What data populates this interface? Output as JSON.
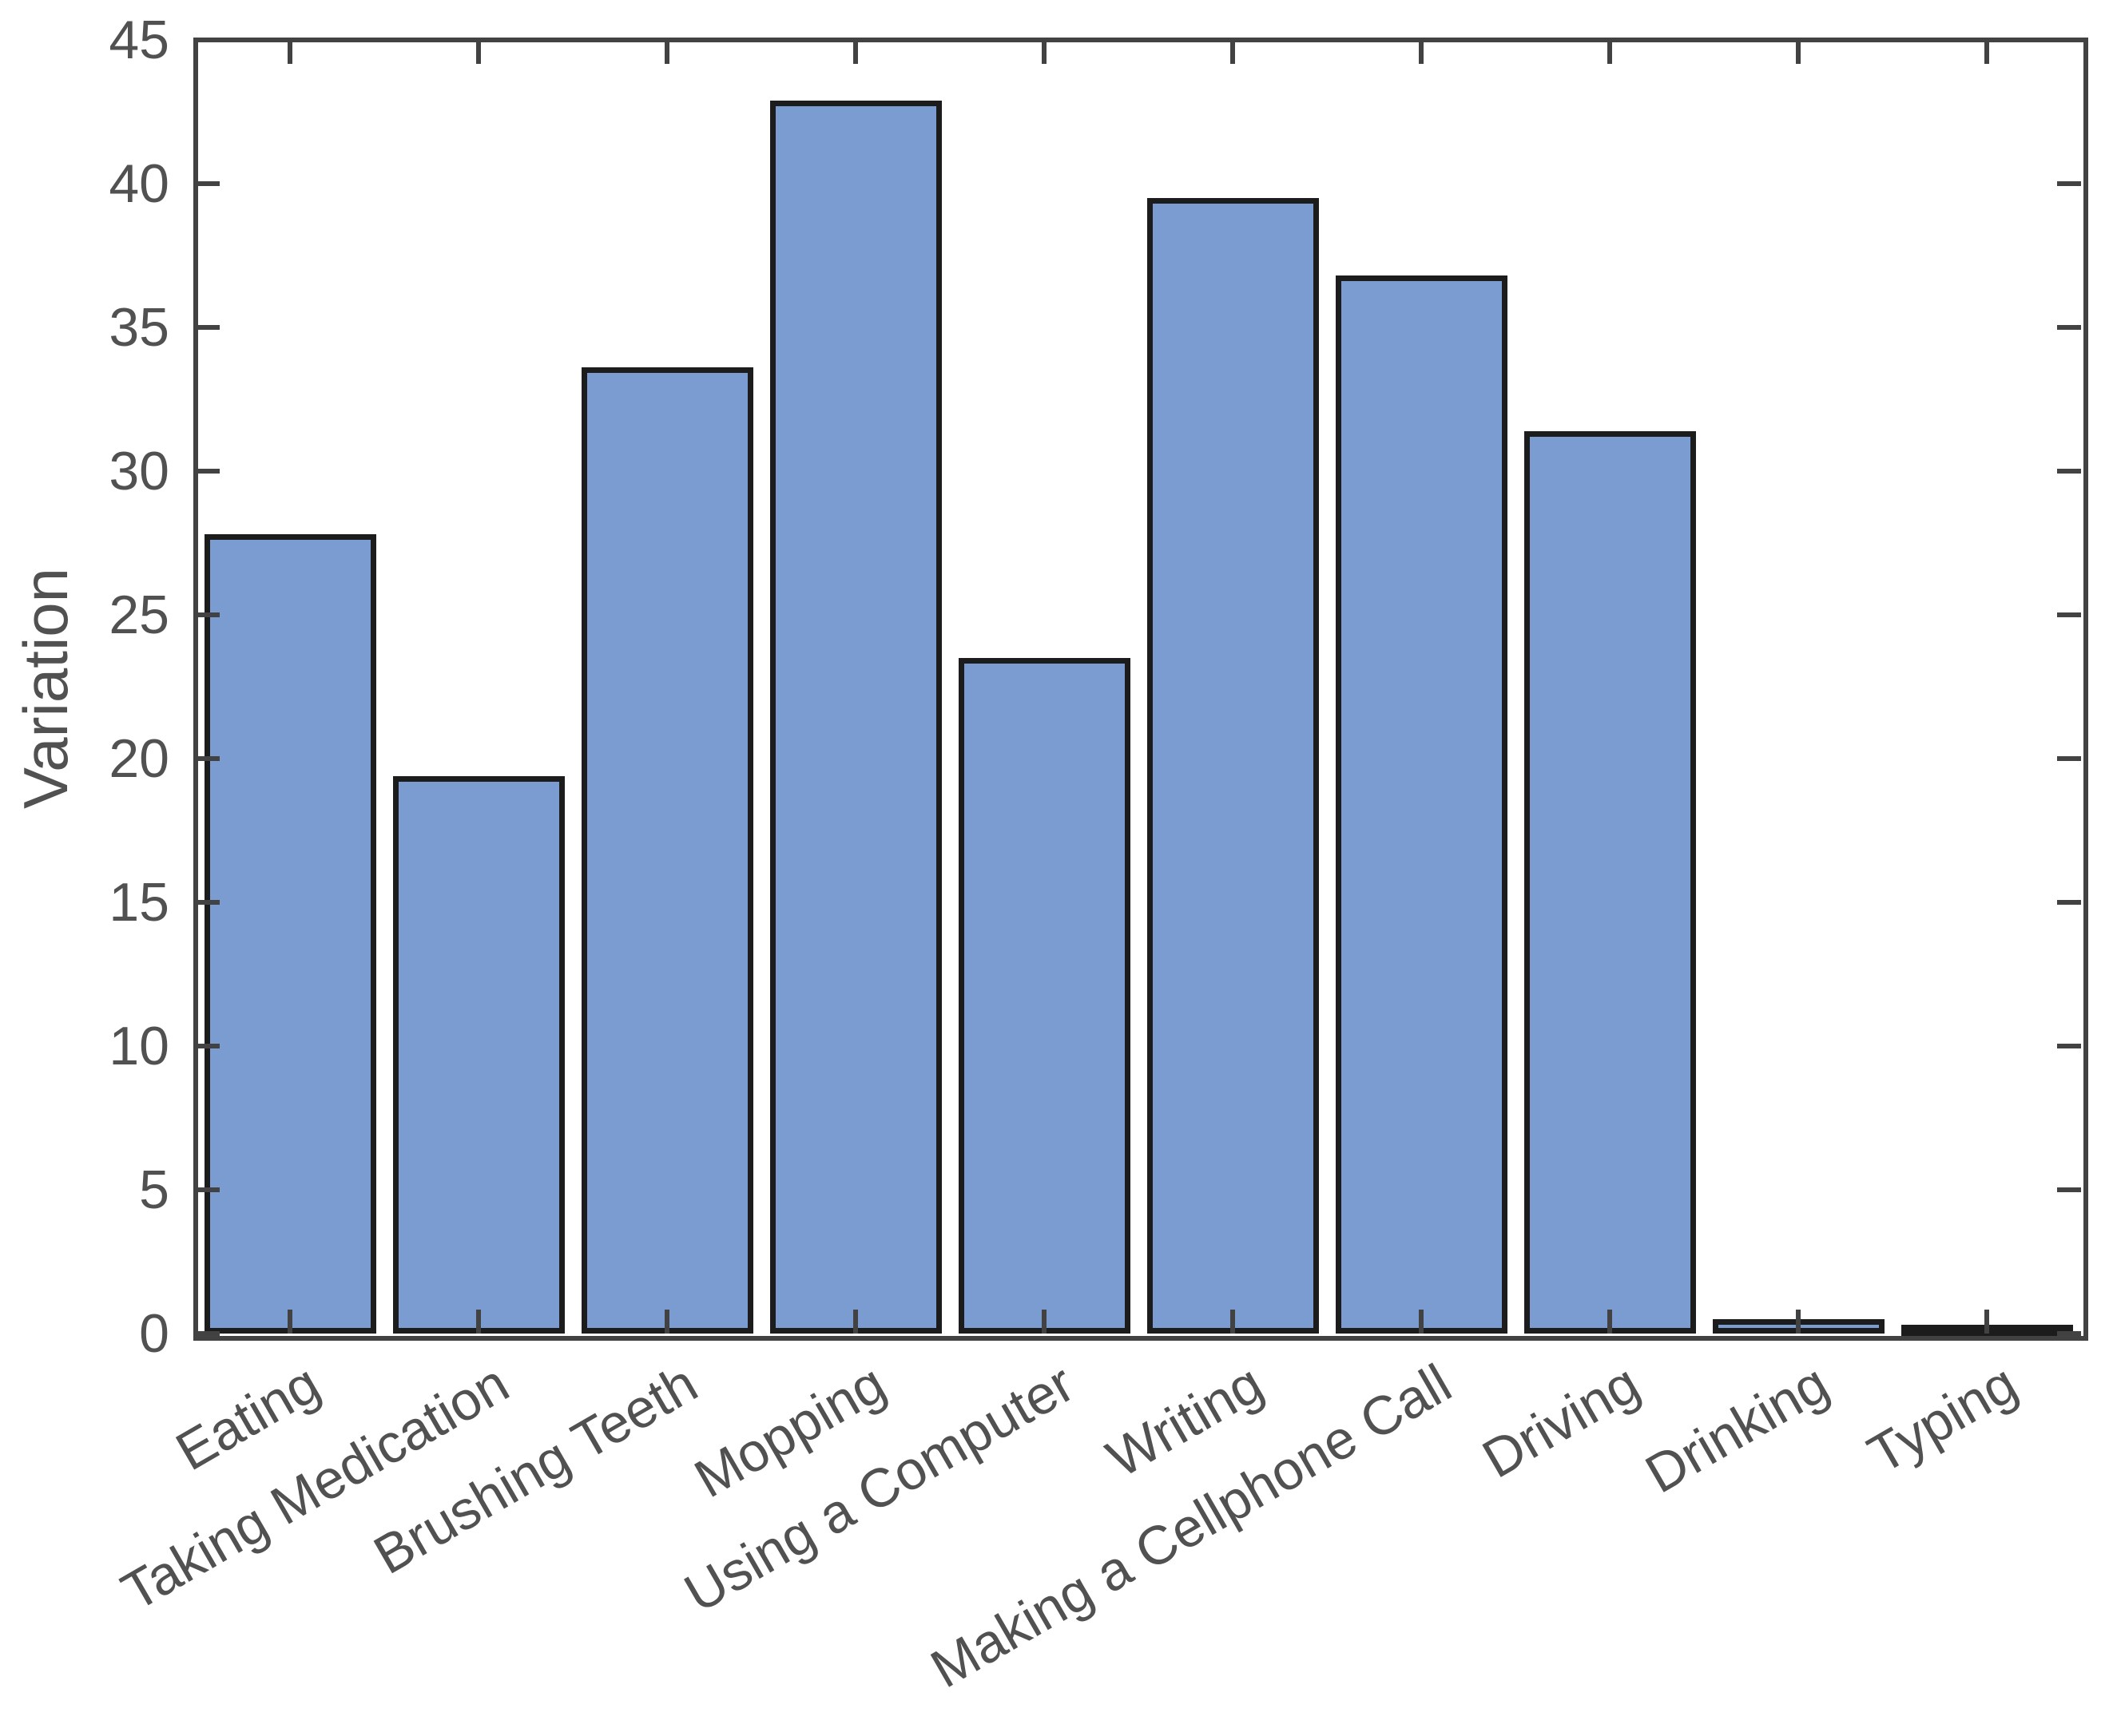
{
  "figure": {
    "background": "#ffffff"
  },
  "chart_data": {
    "type": "bar",
    "title": "",
    "xlabel": "",
    "ylabel": "Variation",
    "categories": [
      "Eating",
      "Taking Medication",
      "Brushing Teeth",
      "Mopping",
      "Using a Computer",
      "Writing",
      "Making a Cellphone Call",
      "Driving",
      "Drinking",
      "Typing"
    ],
    "values": [
      27.8,
      19.4,
      33.6,
      42.9,
      23.5,
      39.5,
      36.8,
      31.4,
      0.5,
      0.3
    ],
    "ylim": [
      0,
      45
    ],
    "yticks": [
      0,
      5,
      10,
      15,
      20,
      25,
      30,
      35,
      40,
      45
    ],
    "grid": false,
    "legend": "none",
    "box": true,
    "tick_direction": "in",
    "x_tick_rotation_deg": 30,
    "bar_width_fraction": 0.91,
    "colors": {
      "bar_fill": "#7A9CD1",
      "bar_edge": "#1C1C1C",
      "axis": "#424242",
      "tick_text": "#515151"
    }
  }
}
